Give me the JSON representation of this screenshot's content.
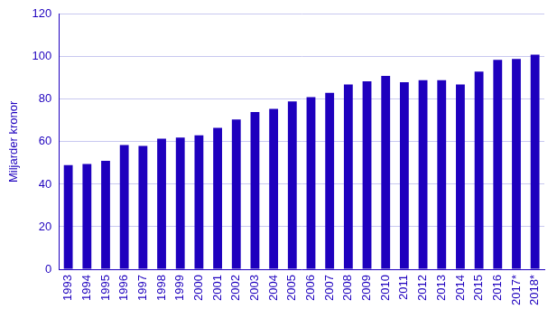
{
  "chart_data": {
    "type": "bar",
    "y_label": "Miljarder kronor",
    "categories": [
      "1993",
      "1994",
      "1995",
      "1996",
      "1997",
      "1998",
      "1999",
      "2000",
      "2001",
      "2002",
      "2003",
      "2004",
      "2005",
      "2006",
      "2007",
      "2008",
      "2009",
      "2010",
      "2011",
      "2012",
      "2013",
      "2014",
      "2015",
      "2016",
      "2017*",
      "2018*"
    ],
    "values": [
      49,
      49.5,
      51,
      58.5,
      58,
      61.5,
      62,
      63,
      66.5,
      70.5,
      74,
      75.5,
      79,
      81,
      83,
      87,
      88.5,
      91,
      88,
      89,
      89,
      87,
      93,
      98.5,
      99,
      101
    ],
    "color": "#1e00be",
    "ylim": [
      0,
      120
    ],
    "yticks": [
      0,
      20,
      40,
      60,
      80,
      100,
      120
    ],
    "grid": true
  }
}
